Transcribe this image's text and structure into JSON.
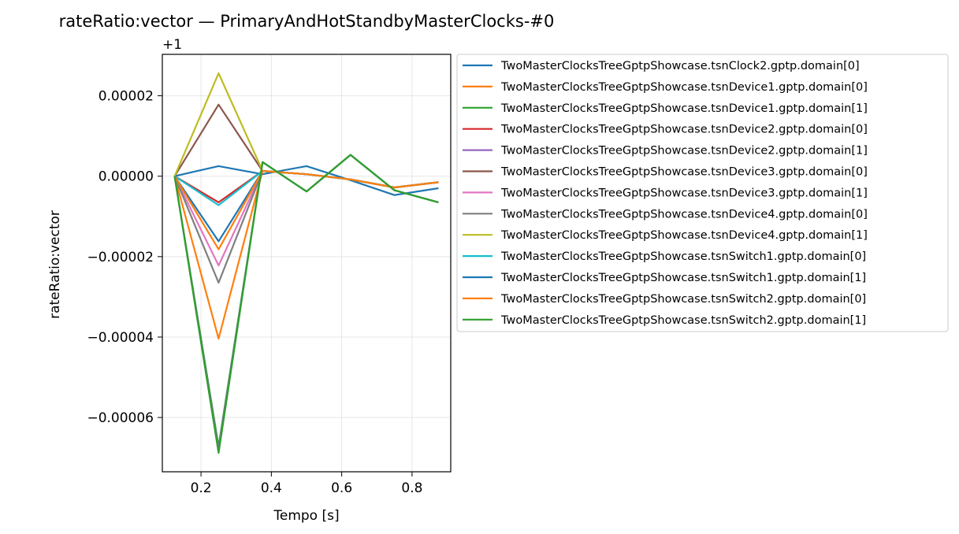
{
  "chart_data": {
    "type": "line",
    "title": "rateRatio:vector — PrimaryAndHotStandbyMasterClocks-#0",
    "xlabel": "Tempo [s]",
    "ylabel": "rateRatio:vector",
    "y_offset_label": "+1",
    "xlim": [
      0.09,
      0.91
    ],
    "ylim": [
      -7.35e-05,
      3.03e-05
    ],
    "grid": true,
    "legend_position": "outside-right",
    "x_ticks": [
      {
        "value": 0.2,
        "label": "0.2"
      },
      {
        "value": 0.4,
        "label": "0.4"
      },
      {
        "value": 0.6,
        "label": "0.6"
      },
      {
        "value": 0.8,
        "label": "0.8"
      }
    ],
    "y_ticks": [
      {
        "value": 2e-05,
        "label": "0.00002"
      },
      {
        "value": 0.0,
        "label": "0.00000"
      },
      {
        "value": -2e-05,
        "label": "−0.00002"
      },
      {
        "value": -4e-05,
        "label": "−0.00004"
      },
      {
        "value": -6e-05,
        "label": "−0.00006"
      }
    ],
    "x": [
      0.125,
      0.25,
      0.375,
      0.5,
      0.625,
      0.75,
      0.875
    ],
    "series": [
      {
        "name": "TwoMasterClocksTreeGptpShowcase.tsnClock2.gptp.domain[0]",
        "color": "#1f77b4",
        "values": [
          0,
          2.5e-06,
          5e-07,
          2.5e-06,
          -1e-06,
          -4.7e-06,
          -3e-06
        ]
      },
      {
        "name": "TwoMasterClocksTreeGptpShowcase.tsnDevice1.gptp.domain[0]",
        "color": "#ff7f0e",
        "values": [
          0,
          -4.04e-05,
          1.3e-06,
          5e-07,
          -8e-07,
          -2.8e-06,
          -1.5e-06
        ]
      },
      {
        "name": "TwoMasterClocksTreeGptpShowcase.tsnDevice1.gptp.domain[1]",
        "color": "#2ca02c",
        "values": [
          0,
          -6.72e-05,
          3.5e-06,
          -3.8e-06,
          5.3e-06,
          -3.5e-06,
          -6.5e-06
        ]
      },
      {
        "name": "TwoMasterClocksTreeGptpShowcase.tsnDevice2.gptp.domain[0]",
        "color": "#d62728",
        "values": [
          0,
          -6.5e-06,
          1.3e-06,
          5e-07,
          -8e-07,
          -2.8e-06,
          -1.5e-06
        ]
      },
      {
        "name": "TwoMasterClocksTreeGptpShowcase.tsnDevice2.gptp.domain[1]",
        "color": "#9467bd",
        "values": [
          0,
          -6.8e-05,
          3.5e-06,
          -3.8e-06,
          5.3e-06,
          -3.5e-06,
          -6.5e-06
        ]
      },
      {
        "name": "TwoMasterClocksTreeGptpShowcase.tsnDevice3.gptp.domain[0]",
        "color": "#8c564b",
        "values": [
          0,
          1.78e-05,
          1.3e-06,
          5e-07,
          -8e-07,
          -2.8e-06,
          -1.5e-06
        ]
      },
      {
        "name": "TwoMasterClocksTreeGptpShowcase.tsnDevice3.gptp.domain[1]",
        "color": "#e377c2",
        "values": [
          0,
          -2.22e-05,
          1.3e-06,
          5e-07,
          -8e-07,
          -2.8e-06,
          -1.5e-06
        ]
      },
      {
        "name": "TwoMasterClocksTreeGptpShowcase.tsnDevice4.gptp.domain[0]",
        "color": "#7f7f7f",
        "values": [
          0,
          -2.65e-05,
          1.3e-06,
          5e-07,
          -8e-07,
          -2.8e-06,
          -1.5e-06
        ]
      },
      {
        "name": "TwoMasterClocksTreeGptpShowcase.tsnDevice4.gptp.domain[1]",
        "color": "#bcbd22",
        "values": [
          0,
          2.56e-05,
          1.3e-06,
          5e-07,
          -8e-07,
          -2.8e-06,
          -1.5e-06
        ]
      },
      {
        "name": "TwoMasterClocksTreeGptpShowcase.tsnSwitch1.gptp.domain[0]",
        "color": "#17becf",
        "values": [
          0,
          -7.2e-06,
          1.3e-06,
          5e-07,
          -8e-07,
          -2.8e-06,
          -1.5e-06
        ]
      },
      {
        "name": "TwoMasterClocksTreeGptpShowcase.tsnSwitch1.gptp.domain[1]",
        "color": "#1f77b4",
        "values": [
          0,
          -1.62e-05,
          1.3e-06,
          5e-07,
          -8e-07,
          -2.8e-06,
          -1.5e-06
        ]
      },
      {
        "name": "TwoMasterClocksTreeGptpShowcase.tsnSwitch2.gptp.domain[0]",
        "color": "#ff7f0e",
        "values": [
          0,
          -1.82e-05,
          1.3e-06,
          5e-07,
          -8e-07,
          -2.8e-06,
          -1.5e-06
        ]
      },
      {
        "name": "TwoMasterClocksTreeGptpShowcase.tsnSwitch2.gptp.domain[1]",
        "color": "#2ca02c",
        "values": [
          0,
          -6.88e-05,
          3.5e-06,
          -3.8e-06,
          5.3e-06,
          -3.5e-06,
          -6.5e-06
        ]
      }
    ]
  }
}
